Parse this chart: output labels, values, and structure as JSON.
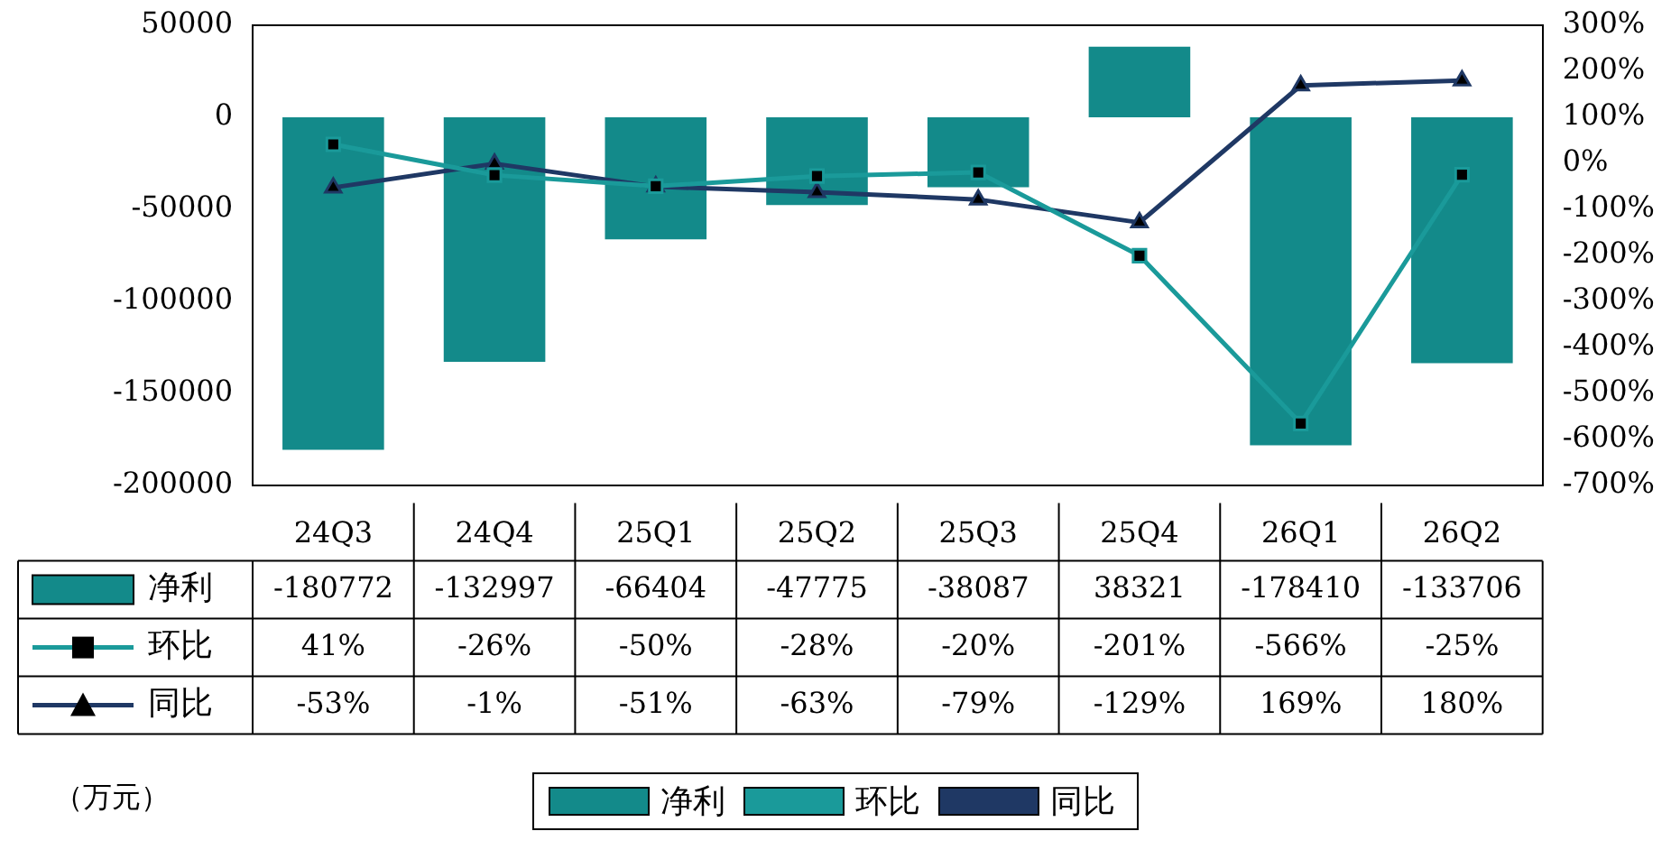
{
  "chart_data": {
    "type": "bar",
    "categories": [
      "24Q3",
      "24Q4",
      "25Q1",
      "25Q2",
      "25Q3",
      "25Q4",
      "26Q1",
      "26Q2"
    ],
    "series": [
      {
        "name": "净利",
        "color": "#138a8a",
        "values": [
          -180772,
          -132997,
          -66404,
          -47775,
          -38087,
          38321,
          -178410,
          -133706
        ],
        "value_labels": [
          "-180772",
          "-132997",
          "-66404",
          "-47775",
          "-38087",
          "38321",
          "-178410",
          "-133706"
        ]
      },
      {
        "name": "环比",
        "type": "line",
        "axis": "y2",
        "color": "#1a9a9a",
        "marker": "square",
        "values": [
          41,
          -26,
          -50,
          -28,
          -20,
          -201,
          -566,
          -25
        ],
        "value_labels": [
          "41%",
          "-26%",
          "-50%",
          "-28%",
          "-20%",
          "-201%",
          "-566%",
          "-25%"
        ]
      },
      {
        "name": "同比",
        "type": "line",
        "axis": "y2",
        "color": "#1f3864",
        "marker": "triangle",
        "values": [
          -53,
          -1,
          -51,
          -63,
          -79,
          -129,
          169,
          180
        ],
        "value_labels": [
          "-53%",
          "-1%",
          "-51%",
          "-63%",
          "-79%",
          "-129%",
          "169%",
          "180%"
        ]
      }
    ],
    "ylim": [
      -200000,
      50000
    ],
    "yticks": [
      -200000,
      -150000,
      -100000,
      -50000,
      0,
      50000
    ],
    "y2lim": [
      -700,
      300
    ],
    "y2ticks": [
      {
        "value": -700,
        "label": "-700%"
      },
      {
        "value": -600,
        "label": "-600%"
      },
      {
        "value": -500,
        "label": "-500%"
      },
      {
        "value": -400,
        "label": "-400%"
      },
      {
        "value": -300,
        "label": "-300%"
      },
      {
        "value": -200,
        "label": "-200%"
      },
      {
        "value": -100,
        "label": "-100%"
      },
      {
        "value": 0,
        "label": "0%"
      },
      {
        "value": 100,
        "label": "100%"
      },
      {
        "value": 200,
        "label": "200%"
      },
      {
        "value": 300,
        "label": "300%"
      }
    ],
    "grid": false,
    "legend": "bottom",
    "annotations": [
      "（万元）"
    ]
  }
}
